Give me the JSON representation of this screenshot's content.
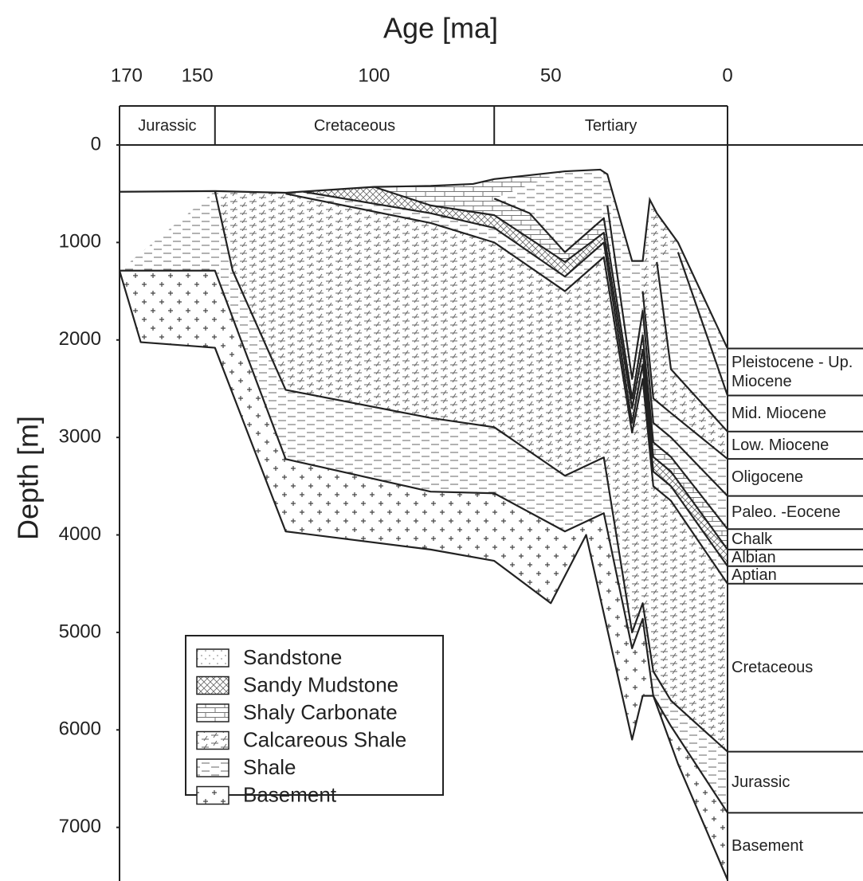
{
  "chart_data": {
    "type": "burial",
    "title": "Age [ma]",
    "y_label": "Depth [m]",
    "xlim": [
      172,
      0
    ],
    "xticks": [
      170,
      150,
      100,
      50,
      0
    ],
    "ylim": [
      0,
      7550
    ],
    "yticks": [
      0,
      1000,
      2000,
      3000,
      4000,
      5000,
      6000,
      7000
    ],
    "periods": [
      {
        "label": "Jurassic",
        "start": 172,
        "end": 145
      },
      {
        "label": "Cretaceous",
        "start": 145,
        "end": 66
      },
      {
        "label": "Tertiary",
        "start": 66,
        "end": 0
      }
    ],
    "surface": {
      "x": [
        172,
        145,
        125,
        100,
        84,
        72,
        66,
        46,
        36,
        34,
        27,
        24,
        22,
        20,
        14,
        0
      ],
      "values": [
        480,
        473,
        490,
        430,
        420,
        400,
        350,
        270,
        253,
        300,
        1190,
        1190,
        560,
        700,
        1000,
        2088
      ]
    },
    "units": [
      {
        "pattern": "basement",
        "x": [
          172,
          166,
          145,
          125,
          84,
          66,
          50,
          40,
          27,
          24,
          21,
          14,
          0
        ],
        "values": [
          1289,
          2023,
          2080,
          3964,
          4150,
          4266,
          4700,
          4000,
          6100,
          5650,
          5650,
          6350,
          7537
        ]
      },
      {
        "pattern": "shale",
        "x": [
          172,
          164,
          145,
          125,
          84,
          66,
          46,
          35,
          27,
          24,
          21,
          16,
          0
        ],
        "values": [
          1289,
          1289,
          1289,
          3222,
          3556,
          3573,
          3964,
          3777,
          5163,
          4861,
          5652,
          5962,
          6850
        ]
      },
      {
        "pattern": "calcareous-shale",
        "x": [
          145,
          140,
          125,
          84,
          66,
          46,
          35,
          27,
          24,
          21,
          16,
          0
        ],
        "values": [
          473,
          1289,
          2512,
          2800,
          2895,
          3393,
          3205,
          5000,
          4700,
          5400,
          5700,
          6223
        ]
      },
      {
        "pattern": "shale",
        "x": [
          125,
          84,
          66,
          46,
          35,
          27,
          24,
          21,
          16,
          0
        ],
        "values": [
          500,
          800,
          1000,
          1500,
          1150,
          2950,
          2400,
          3500,
          3650,
          4500
        ]
      },
      {
        "pattern": "sandy-mudstone",
        "x": [
          120,
          84,
          66,
          46,
          35,
          27,
          24,
          21,
          16,
          0
        ],
        "values": [
          480,
          700,
          850,
          1350,
          1000,
          2850,
          2250,
          3350,
          3500,
          4320
        ]
      },
      {
        "pattern": "shaly-carbonate",
        "x": [
          100,
          84,
          66,
          46,
          35,
          27,
          24,
          21,
          16,
          0
        ],
        "values": [
          430,
          620,
          720,
          1200,
          900,
          2700,
          2100,
          3200,
          3350,
          4150
        ]
      },
      {
        "pattern": "shale",
        "x": [
          66,
          56,
          46,
          35,
          27,
          24,
          21,
          16,
          0
        ],
        "values": [
          550,
          700,
          1100,
          750,
          2600,
          1950,
          3050,
          3200,
          3940
        ]
      },
      {
        "pattern": "shale",
        "x": [
          34,
          27,
          24,
          21,
          16,
          0
        ],
        "values": [
          620,
          2400,
          1700,
          2850,
          3000,
          3600
        ]
      },
      {
        "pattern": "calcareous-shale",
        "x": [
          24,
          21,
          16,
          0
        ],
        "values": [
          1500,
          2600,
          2750,
          3220
        ]
      },
      {
        "pattern": "shale",
        "x": [
          20,
          16,
          0
        ],
        "values": [
          1200,
          2300,
          2940
        ]
      },
      {
        "pattern": "shale",
        "x": [
          14,
          0
        ],
        "values": [
          1100,
          2570
        ]
      }
    ],
    "present_units": [
      {
        "label": "Pleistocene - Up. Miocene",
        "top": 2088,
        "base": 2570
      },
      {
        "label": "Mid. Miocene",
        "top": 2570,
        "base": 2940
      },
      {
        "label": "Low. Miocene",
        "top": 2940,
        "base": 3220
      },
      {
        "label": "Oligocene",
        "top": 3220,
        "base": 3600
      },
      {
        "label": "Paleo. -Eocene",
        "top": 3600,
        "base": 3940
      },
      {
        "label": "Chalk",
        "top": 3940,
        "base": 4150
      },
      {
        "label": "Albian",
        "top": 4150,
        "base": 4320
      },
      {
        "label": "Aptian",
        "top": 4320,
        "base": 4500
      },
      {
        "label": "Cretaceous",
        "top": 4500,
        "base": 6223
      },
      {
        "label": "Jurassic",
        "top": 6223,
        "base": 6850
      },
      {
        "label": "Basement",
        "top": 6850,
        "base": 7537
      }
    ],
    "legend": [
      {
        "label": "Sandstone",
        "pattern": "sandstone"
      },
      {
        "label": "Sandy Mudstone",
        "pattern": "sandy-mudstone"
      },
      {
        "label": "Shaly Carbonate",
        "pattern": "shaly-carbonate"
      },
      {
        "label": "Calcareous Shale",
        "pattern": "calcareous-shale"
      },
      {
        "label": "Shale",
        "pattern": "shale"
      },
      {
        "label": "Basement",
        "pattern": "basement"
      }
    ]
  }
}
